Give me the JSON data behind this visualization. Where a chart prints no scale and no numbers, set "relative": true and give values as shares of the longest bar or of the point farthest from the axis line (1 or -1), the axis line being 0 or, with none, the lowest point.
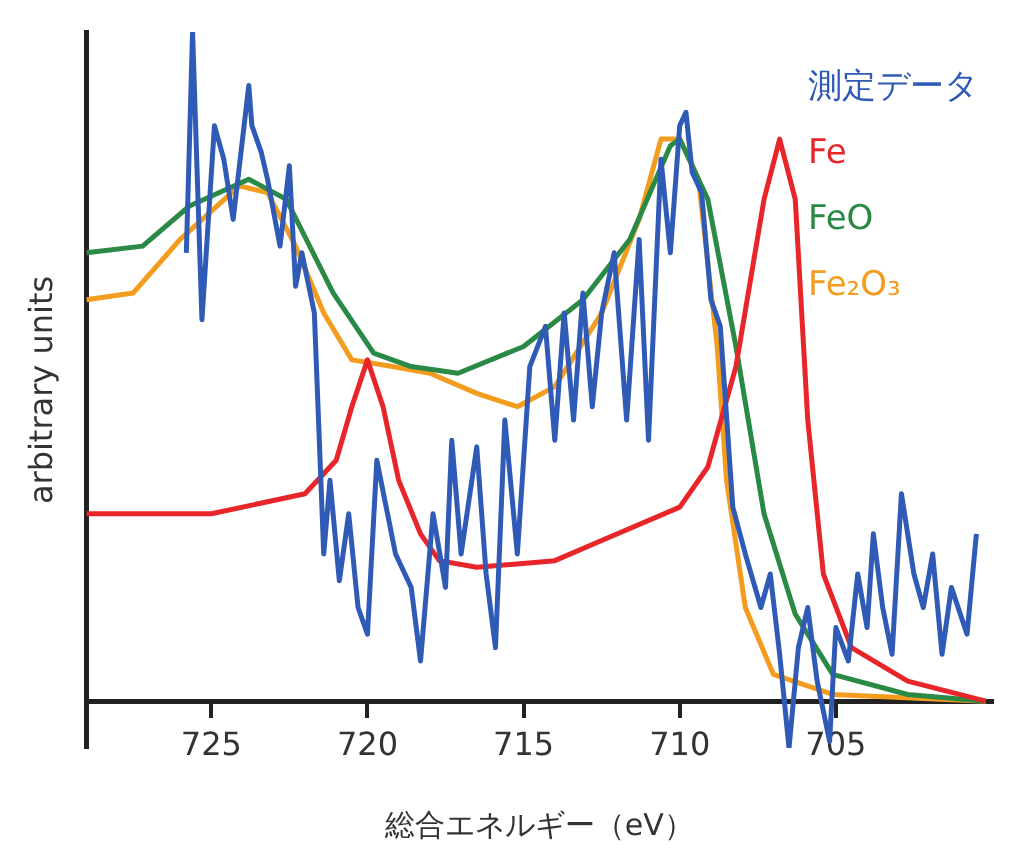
{
  "chart_data": {
    "type": "line",
    "relative": true,
    "xlabel": "総合エネルギー（eV）",
    "ylabel": "arbitrary units",
    "xlim": [
      729,
      700
    ],
    "xticks": [
      725,
      720,
      715,
      710,
      705
    ],
    "grid": false,
    "legend": "top right",
    "tick_labels": "x",
    "marker": "none",
    "line_style": "solid",
    "series": [
      {
        "name": "測定データ",
        "color": "#2f5bb7",
        "x": [
          725.8,
          725.6,
          725.3,
          724.9,
          724.6,
          724.3,
          723.8,
          723.7,
          723.4,
          723.2,
          722.8,
          722.5,
          722.3,
          722.1,
          721.7,
          721.4,
          721.2,
          720.9,
          720.6,
          720.3,
          720.0,
          719.7,
          719.1,
          718.6,
          718.3,
          717.9,
          717.5,
          717.3,
          717.0,
          716.5,
          716.2,
          715.9,
          715.6,
          715.2,
          714.8,
          714.3,
          714.0,
          713.7,
          713.4,
          713.1,
          712.8,
          712.5,
          712.1,
          711.7,
          711.3,
          711.0,
          710.6,
          710.3,
          710.0,
          709.8,
          709.6,
          709.3,
          709.0,
          708.7,
          708.3,
          707.9,
          707.4,
          707.1,
          706.8,
          706.5,
          706.2,
          705.9,
          705.6,
          705.2,
          705.0,
          704.6,
          704.3,
          704.0,
          703.8,
          703.5,
          703.2,
          702.9,
          702.5,
          702.2,
          701.9,
          701.6,
          701.3,
          700.8,
          700.5
        ],
        "values": [
          0.67,
          1.0,
          0.57,
          0.86,
          0.81,
          0.72,
          0.92,
          0.86,
          0.82,
          0.78,
          0.68,
          0.8,
          0.62,
          0.67,
          0.58,
          0.22,
          0.33,
          0.18,
          0.28,
          0.14,
          0.1,
          0.36,
          0.22,
          0.17,
          0.06,
          0.28,
          0.17,
          0.39,
          0.22,
          0.38,
          0.19,
          0.08,
          0.42,
          0.22,
          0.5,
          0.56,
          0.39,
          0.58,
          0.42,
          0.61,
          0.44,
          0.58,
          0.67,
          0.42,
          0.69,
          0.39,
          0.81,
          0.67,
          0.86,
          0.88,
          0.79,
          0.76,
          0.6,
          0.56,
          0.29,
          0.22,
          0.14,
          0.19,
          0.07,
          -0.07,
          0.08,
          0.14,
          0.03,
          -0.06,
          0.11,
          0.06,
          0.19,
          0.11,
          0.25,
          0.14,
          0.07,
          0.31,
          0.19,
          0.14,
          0.22,
          0.07,
          0.17,
          0.1,
          0.25
        ]
      },
      {
        "name": "Fe",
        "color": "#e8262a",
        "x": [
          729,
          725,
          722,
          721,
          720.5,
          720,
          719.5,
          719,
          718.3,
          717.7,
          716.5,
          714,
          712.5,
          710,
          709.1,
          708.2,
          707.3,
          706.8,
          706.3,
          705.9,
          705.4,
          704.5,
          702.7,
          700.2
        ],
        "values": [
          0.28,
          0.28,
          0.31,
          0.36,
          0.44,
          0.51,
          0.44,
          0.33,
          0.25,
          0.21,
          0.2,
          0.21,
          0.24,
          0.29,
          0.35,
          0.5,
          0.75,
          0.84,
          0.75,
          0.42,
          0.19,
          0.08,
          0.03,
          0
        ]
      },
      {
        "name": "FeO",
        "color": "#2a8a45",
        "x": [
          729,
          727.2,
          725.7,
          723.8,
          722.6,
          721.1,
          719.8,
          718.6,
          717.1,
          715,
          713.1,
          711.6,
          710.3,
          710,
          709.1,
          708.2,
          707.3,
          706.3,
          705.1,
          702.7,
          700.2
        ],
        "values": [
          0.67,
          0.68,
          0.74,
          0.78,
          0.75,
          0.61,
          0.52,
          0.5,
          0.49,
          0.53,
          0.6,
          0.69,
          0.83,
          0.84,
          0.75,
          0.53,
          0.28,
          0.13,
          0.04,
          0.01,
          0
        ]
      },
      {
        "name": "Fe₂O₃",
        "color": "#f39c1e",
        "x": [
          729,
          727.5,
          726,
          724.1,
          723.2,
          722.3,
          721.4,
          720.5,
          719.2,
          718,
          716.5,
          715.2,
          714,
          712.5,
          711.3,
          710.6,
          710,
          709.4,
          708.8,
          708.5,
          707.9,
          707,
          705.1,
          700.2
        ],
        "values": [
          0.6,
          0.61,
          0.69,
          0.77,
          0.76,
          0.68,
          0.58,
          0.51,
          0.5,
          0.49,
          0.46,
          0.44,
          0.47,
          0.58,
          0.72,
          0.84,
          0.84,
          0.78,
          0.53,
          0.33,
          0.14,
          0.04,
          0.01,
          0
        ]
      }
    ]
  }
}
